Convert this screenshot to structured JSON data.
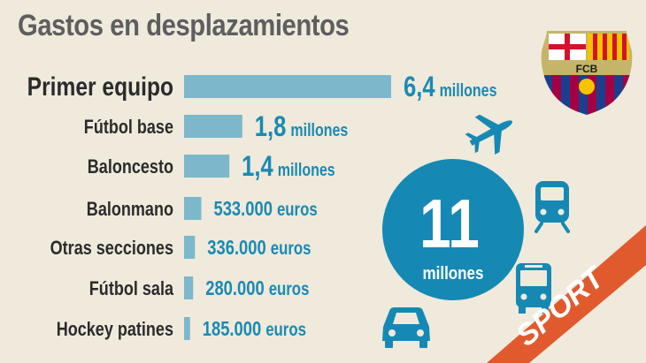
{
  "title": "Gastos en desplazamientos",
  "total": {
    "value": "11",
    "unit": "millones"
  },
  "crest": {
    "text": "FCB"
  },
  "brand": {
    "text": "SPORT"
  },
  "colors": {
    "bar": "#7cb8cb",
    "value": "#1a8ab4",
    "circle": "#1589b4",
    "brand": "#e15a2e",
    "background": "#efeadb"
  },
  "icons": [
    "plane-icon",
    "train-icon",
    "bus-icon",
    "car-icon"
  ],
  "chart_data": {
    "type": "bar",
    "orientation": "horizontal",
    "categories": [
      "Primer equipo",
      "Fútbol base",
      "Baloncesto",
      "Balonmano",
      "Otras secciones",
      "Fútbol sala",
      "Hockey patines"
    ],
    "values": [
      6400000,
      1800000,
      1400000,
      533000,
      336000,
      280000,
      185000
    ],
    "labels": [
      {
        "number": "6,4",
        "unit": "millones"
      },
      {
        "number": "1,8",
        "unit": "millones"
      },
      {
        "number": "1,4",
        "unit": "millones"
      },
      {
        "number": "533.000",
        "unit": "euros"
      },
      {
        "number": "336.000",
        "unit": "euros"
      },
      {
        "number": "280.000",
        "unit": "euros"
      },
      {
        "number": "185.000",
        "unit": "euros"
      }
    ],
    "title": "Gastos en desplazamientos",
    "xlabel": "",
    "ylabel": "",
    "grid": false,
    "legend": "none"
  }
}
